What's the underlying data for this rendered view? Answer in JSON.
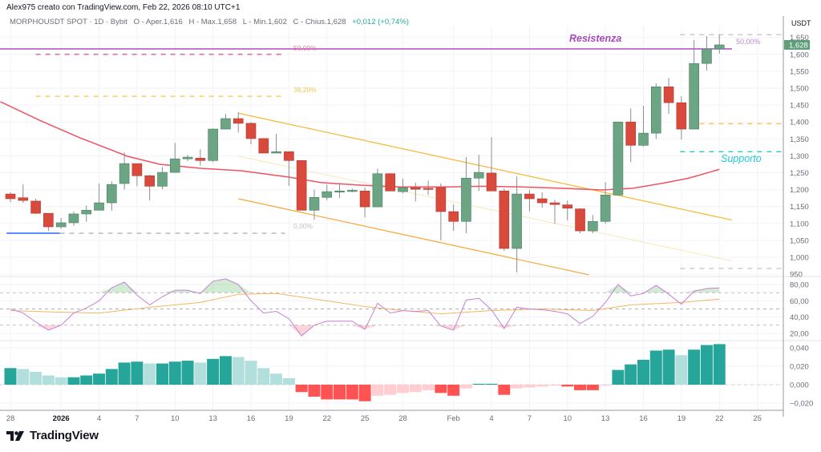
{
  "header": {
    "credit": "Alex975 creato con TradingView.com, Feb 22, 2026 08:10 UTC+1",
    "symbol": "MORPHOUSDT SPOT · 1D · Bybit",
    "open": "O - Aper.1,616",
    "high": "H - Max.1,658",
    "low": "L - Min.1,602",
    "close": "C - Chius.1,628",
    "change": "+0,012 (+0,74%)"
  },
  "currency": "USDT",
  "brand": "TradingView",
  "colors": {
    "up": "#6ba583",
    "down": "#d9493c",
    "ma": "#f0525f",
    "resistance": "#9c27b0",
    "channel": "#f7b731",
    "support": "#26c6da",
    "rsi": "#c77fd6",
    "rsi_ma": "#f5b561",
    "hist_up_strong": "#26a69a",
    "hist_up_weak": "#b2dfdb",
    "hist_down_strong": "#ff5252",
    "hist_down_weak": "#ffcdd2"
  },
  "chart_data": {
    "type": "candlestick",
    "title": "MORPHOUSDT SPOT · 1D · Bybit",
    "ylabel": "USDT",
    "ylim": [
      945,
      1680
    ],
    "price_ticks": [
      "1,650",
      "1,600",
      "1,550",
      "1,500",
      "1,450",
      "1,400",
      "1,350",
      "1,300",
      "1,250",
      "1,200",
      "1,150",
      "1,100",
      "1,050",
      "1,000",
      "950"
    ],
    "price_tick_values": [
      1650,
      1600,
      1550,
      1500,
      1450,
      1400,
      1350,
      1300,
      1250,
      1200,
      1150,
      1100,
      1050,
      1000,
      950
    ],
    "last_price": 1628,
    "last_price_label": "1,628",
    "x_ticks": [
      {
        "index": 0,
        "label": "28"
      },
      {
        "index": 4,
        "label": "2026",
        "bold": true
      },
      {
        "index": 7,
        "label": "4"
      },
      {
        "index": 10,
        "label": "7"
      },
      {
        "index": 13,
        "label": "10"
      },
      {
        "index": 16,
        "label": "13"
      },
      {
        "index": 19,
        "label": "16"
      },
      {
        "index": 22,
        "label": "19"
      },
      {
        "index": 25,
        "label": "22"
      },
      {
        "index": 28,
        "label": "25"
      },
      {
        "index": 31,
        "label": "28"
      },
      {
        "index": 35,
        "label": "Feb"
      },
      {
        "index": 38,
        "label": "4"
      },
      {
        "index": 41,
        "label": "7"
      },
      {
        "index": 44,
        "label": "10"
      },
      {
        "index": 47,
        "label": "13"
      },
      {
        "index": 50,
        "label": "16"
      },
      {
        "index": 53,
        "label": "19"
      },
      {
        "index": 56,
        "label": "22"
      },
      {
        "index": 59,
        "label": "25"
      }
    ],
    "candles_ohlc": [
      [
        1187,
        1192,
        1163,
        1173
      ],
      [
        1176,
        1216,
        1161,
        1168
      ],
      [
        1166,
        1173,
        1128,
        1130
      ],
      [
        1130,
        1130,
        1078,
        1090
      ],
      [
        1090,
        1116,
        1085,
        1102
      ],
      [
        1102,
        1135,
        1093,
        1128
      ],
      [
        1128,
        1153,
        1105,
        1139
      ],
      [
        1139,
        1218,
        1142,
        1161
      ],
      [
        1161,
        1224,
        1137,
        1215
      ],
      [
        1218,
        1310,
        1200,
        1277
      ],
      [
        1277,
        1277,
        1210,
        1241
      ],
      [
        1241,
        1244,
        1168,
        1210
      ],
      [
        1210,
        1267,
        1201,
        1251
      ],
      [
        1251,
        1338,
        1250,
        1291
      ],
      [
        1291,
        1303,
        1284,
        1296
      ],
      [
        1293,
        1319,
        1271,
        1286
      ],
      [
        1286,
        1381,
        1281,
        1379
      ],
      [
        1379,
        1424,
        1379,
        1410
      ],
      [
        1410,
        1429,
        1369,
        1396
      ],
      [
        1396,
        1400,
        1334,
        1351
      ],
      [
        1351,
        1351,
        1308,
        1308
      ],
      [
        1308,
        1365,
        1308,
        1312
      ],
      [
        1312,
        1312,
        1211,
        1286
      ],
      [
        1286,
        1286,
        1139,
        1139
      ],
      [
        1139,
        1200,
        1111,
        1177
      ],
      [
        1177,
        1215,
        1168,
        1194
      ],
      [
        1194,
        1220,
        1175,
        1196
      ],
      [
        1196,
        1203,
        1192,
        1198
      ],
      [
        1196,
        1206,
        1118,
        1149
      ],
      [
        1149,
        1262,
        1149,
        1247
      ],
      [
        1247,
        1249,
        1196,
        1196
      ],
      [
        1194,
        1232,
        1189,
        1206
      ],
      [
        1206,
        1220,
        1165,
        1201
      ],
      [
        1204,
        1227,
        1184,
        1203
      ],
      [
        1206,
        1218,
        1050,
        1135
      ],
      [
        1135,
        1156,
        1078,
        1106
      ],
      [
        1106,
        1296,
        1071,
        1234
      ],
      [
        1234,
        1303,
        1196,
        1251
      ],
      [
        1249,
        1355,
        1196,
        1196
      ],
      [
        1196,
        1203,
        1019,
        1026
      ],
      [
        1026,
        1239,
        955,
        1187
      ],
      [
        1187,
        1199,
        1135,
        1173
      ],
      [
        1173,
        1192,
        1147,
        1161
      ],
      [
        1161,
        1170,
        1099,
        1156
      ],
      [
        1155,
        1168,
        1109,
        1145
      ],
      [
        1143,
        1145,
        1071,
        1078
      ],
      [
        1078,
        1125,
        1071,
        1106
      ],
      [
        1106,
        1222,
        1099,
        1184
      ],
      [
        1184,
        1400,
        1184,
        1400
      ],
      [
        1400,
        1440,
        1281,
        1331
      ],
      [
        1331,
        1448,
        1327,
        1367
      ],
      [
        1367,
        1514,
        1350,
        1504
      ],
      [
        1504,
        1530,
        1424,
        1457
      ],
      [
        1457,
        1476,
        1348,
        1379
      ],
      [
        1379,
        1642,
        1379,
        1573
      ],
      [
        1573,
        1654,
        1552,
        1616
      ],
      [
        1616,
        1658,
        1602,
        1628
      ]
    ],
    "first_date": "Dec 28",
    "last_date": "Feb 22",
    "moving_average": [
      [
        -0.8,
        1460
      ],
      [
        2.3,
        1405
      ],
      [
        5.5,
        1353
      ],
      [
        9.3,
        1298
      ],
      [
        11.8,
        1275
      ],
      [
        15,
        1263
      ],
      [
        18.2,
        1256
      ],
      [
        22,
        1237
      ],
      [
        24.5,
        1221
      ],
      [
        27.7,
        1213
      ],
      [
        30.8,
        1208
      ],
      [
        34.6,
        1208
      ],
      [
        37.2,
        1210
      ],
      [
        40.3,
        1208
      ],
      [
        43.5,
        1204
      ],
      [
        46.7,
        1199
      ],
      [
        49.2,
        1204
      ],
      [
        51.7,
        1220
      ],
      [
        53.6,
        1234
      ],
      [
        56,
        1260
      ]
    ],
    "levels": [
      {
        "name": "resistance",
        "price": 1616,
        "from": -1,
        "to": 57,
        "style": "solid",
        "color": "#b04cc0"
      },
      {
        "name": "fib-50",
        "price": 1600,
        "from": 2,
        "to": 21.7,
        "style": "dashed",
        "color": "#e0607e"
      },
      {
        "name": "fib-38",
        "price": 1476,
        "from": 2,
        "to": 21.7,
        "style": "dashed",
        "color": "#f5c542"
      },
      {
        "name": "fib-0",
        "price": 1071,
        "from": 3.9,
        "to": 21.7,
        "style": "dashed",
        "color": "#b0b3bb"
      },
      {
        "name": "low-line",
        "price": 1071,
        "from": -0.3,
        "to": 3.9,
        "style": "solid",
        "color": "#2962ff"
      },
      {
        "name": "fib-top-right",
        "price": 1658,
        "from": 52.9,
        "to": 61,
        "style": "dashed",
        "color": "#c5c7cc"
      },
      {
        "name": "fib-mid-right",
        "price": 1395,
        "from": 52.9,
        "to": 61,
        "style": "dashed",
        "color": "#f5c542"
      },
      {
        "name": "support",
        "price": 1312,
        "from": 52.9,
        "to": 61,
        "style": "dashed",
        "color": "#26c6da"
      },
      {
        "name": "fib-bottom-right",
        "price": 967,
        "from": 52.9,
        "to": 61,
        "style": "dashed",
        "color": "#c5c7cc"
      }
    ],
    "channel": {
      "upper": [
        [
          18,
          1426
        ],
        [
          57,
          1110
        ]
      ],
      "lower": [
        [
          18,
          1173
        ],
        [
          45.7,
          948
        ]
      ],
      "middle": [
        [
          18,
          1299
        ],
        [
          57,
          989
        ]
      ]
    },
    "annotations": {
      "resistance_label": "Resistenza",
      "support_label": "Supporto",
      "fib_left_50": "50,00%",
      "fib_left_38": "38,20%",
      "fib_left_0": "0,00%",
      "fib_right_50": "50,00%"
    },
    "rsi": {
      "ticks": [
        "80,00",
        "60,00",
        "40,00",
        "20,00"
      ],
      "tick_values": [
        80,
        60,
        40,
        20
      ],
      "bands": [
        70,
        50,
        30
      ],
      "values": [
        50,
        45,
        34,
        24,
        30,
        45,
        51,
        60,
        76,
        83,
        67,
        55,
        65,
        73,
        73,
        69,
        84,
        87,
        80,
        60,
        45,
        47,
        38,
        17,
        30,
        35,
        35,
        35,
        25,
        57,
        45,
        48,
        47,
        48,
        29,
        24,
        61,
        63,
        49,
        26,
        52,
        50,
        49,
        47,
        44,
        32,
        41,
        58,
        80,
        66,
        69,
        79,
        68,
        56,
        72,
        75,
        76
      ],
      "ma_points": [
        [
          0,
          48
        ],
        [
          4,
          46
        ],
        [
          7,
          45
        ],
        [
          11,
          52
        ],
        [
          15,
          58
        ],
        [
          18,
          68
        ],
        [
          21,
          69
        ],
        [
          25,
          60
        ],
        [
          28,
          53
        ],
        [
          31,
          48
        ],
        [
          34,
          44
        ],
        [
          38,
          48
        ],
        [
          42,
          50
        ],
        [
          46,
          48
        ],
        [
          49,
          55
        ],
        [
          53,
          58
        ],
        [
          56,
          62
        ]
      ]
    },
    "macd_histogram": {
      "ticks": [
        "0,040",
        "0,020",
        "0,000",
        "−0,020"
      ],
      "tick_values": [
        0.04,
        0.02,
        0,
        -0.02
      ],
      "values": [
        0.018,
        0.017,
        0.014,
        0.01,
        0.008,
        0.008,
        0.01,
        0.012,
        0.017,
        0.024,
        0.025,
        0.023,
        0.023,
        0.025,
        0.026,
        0.024,
        0.028,
        0.031,
        0.03,
        0.026,
        0.018,
        0.012,
        0.007,
        -0.008,
        -0.013,
        -0.016,
        -0.016,
        -0.016,
        -0.018,
        -0.012,
        -0.011,
        -0.009,
        -0.008,
        -0.006,
        -0.009,
        -0.012,
        -0.004,
        0.001,
        0.001,
        -0.011,
        -0.004,
        -0.003,
        -0.002,
        -0.001,
        -0.002,
        -0.006,
        -0.006,
        -0.001,
        0.016,
        0.022,
        0.027,
        0.037,
        0.038,
        0.032,
        0.038,
        0.043,
        0.044
      ]
    }
  }
}
